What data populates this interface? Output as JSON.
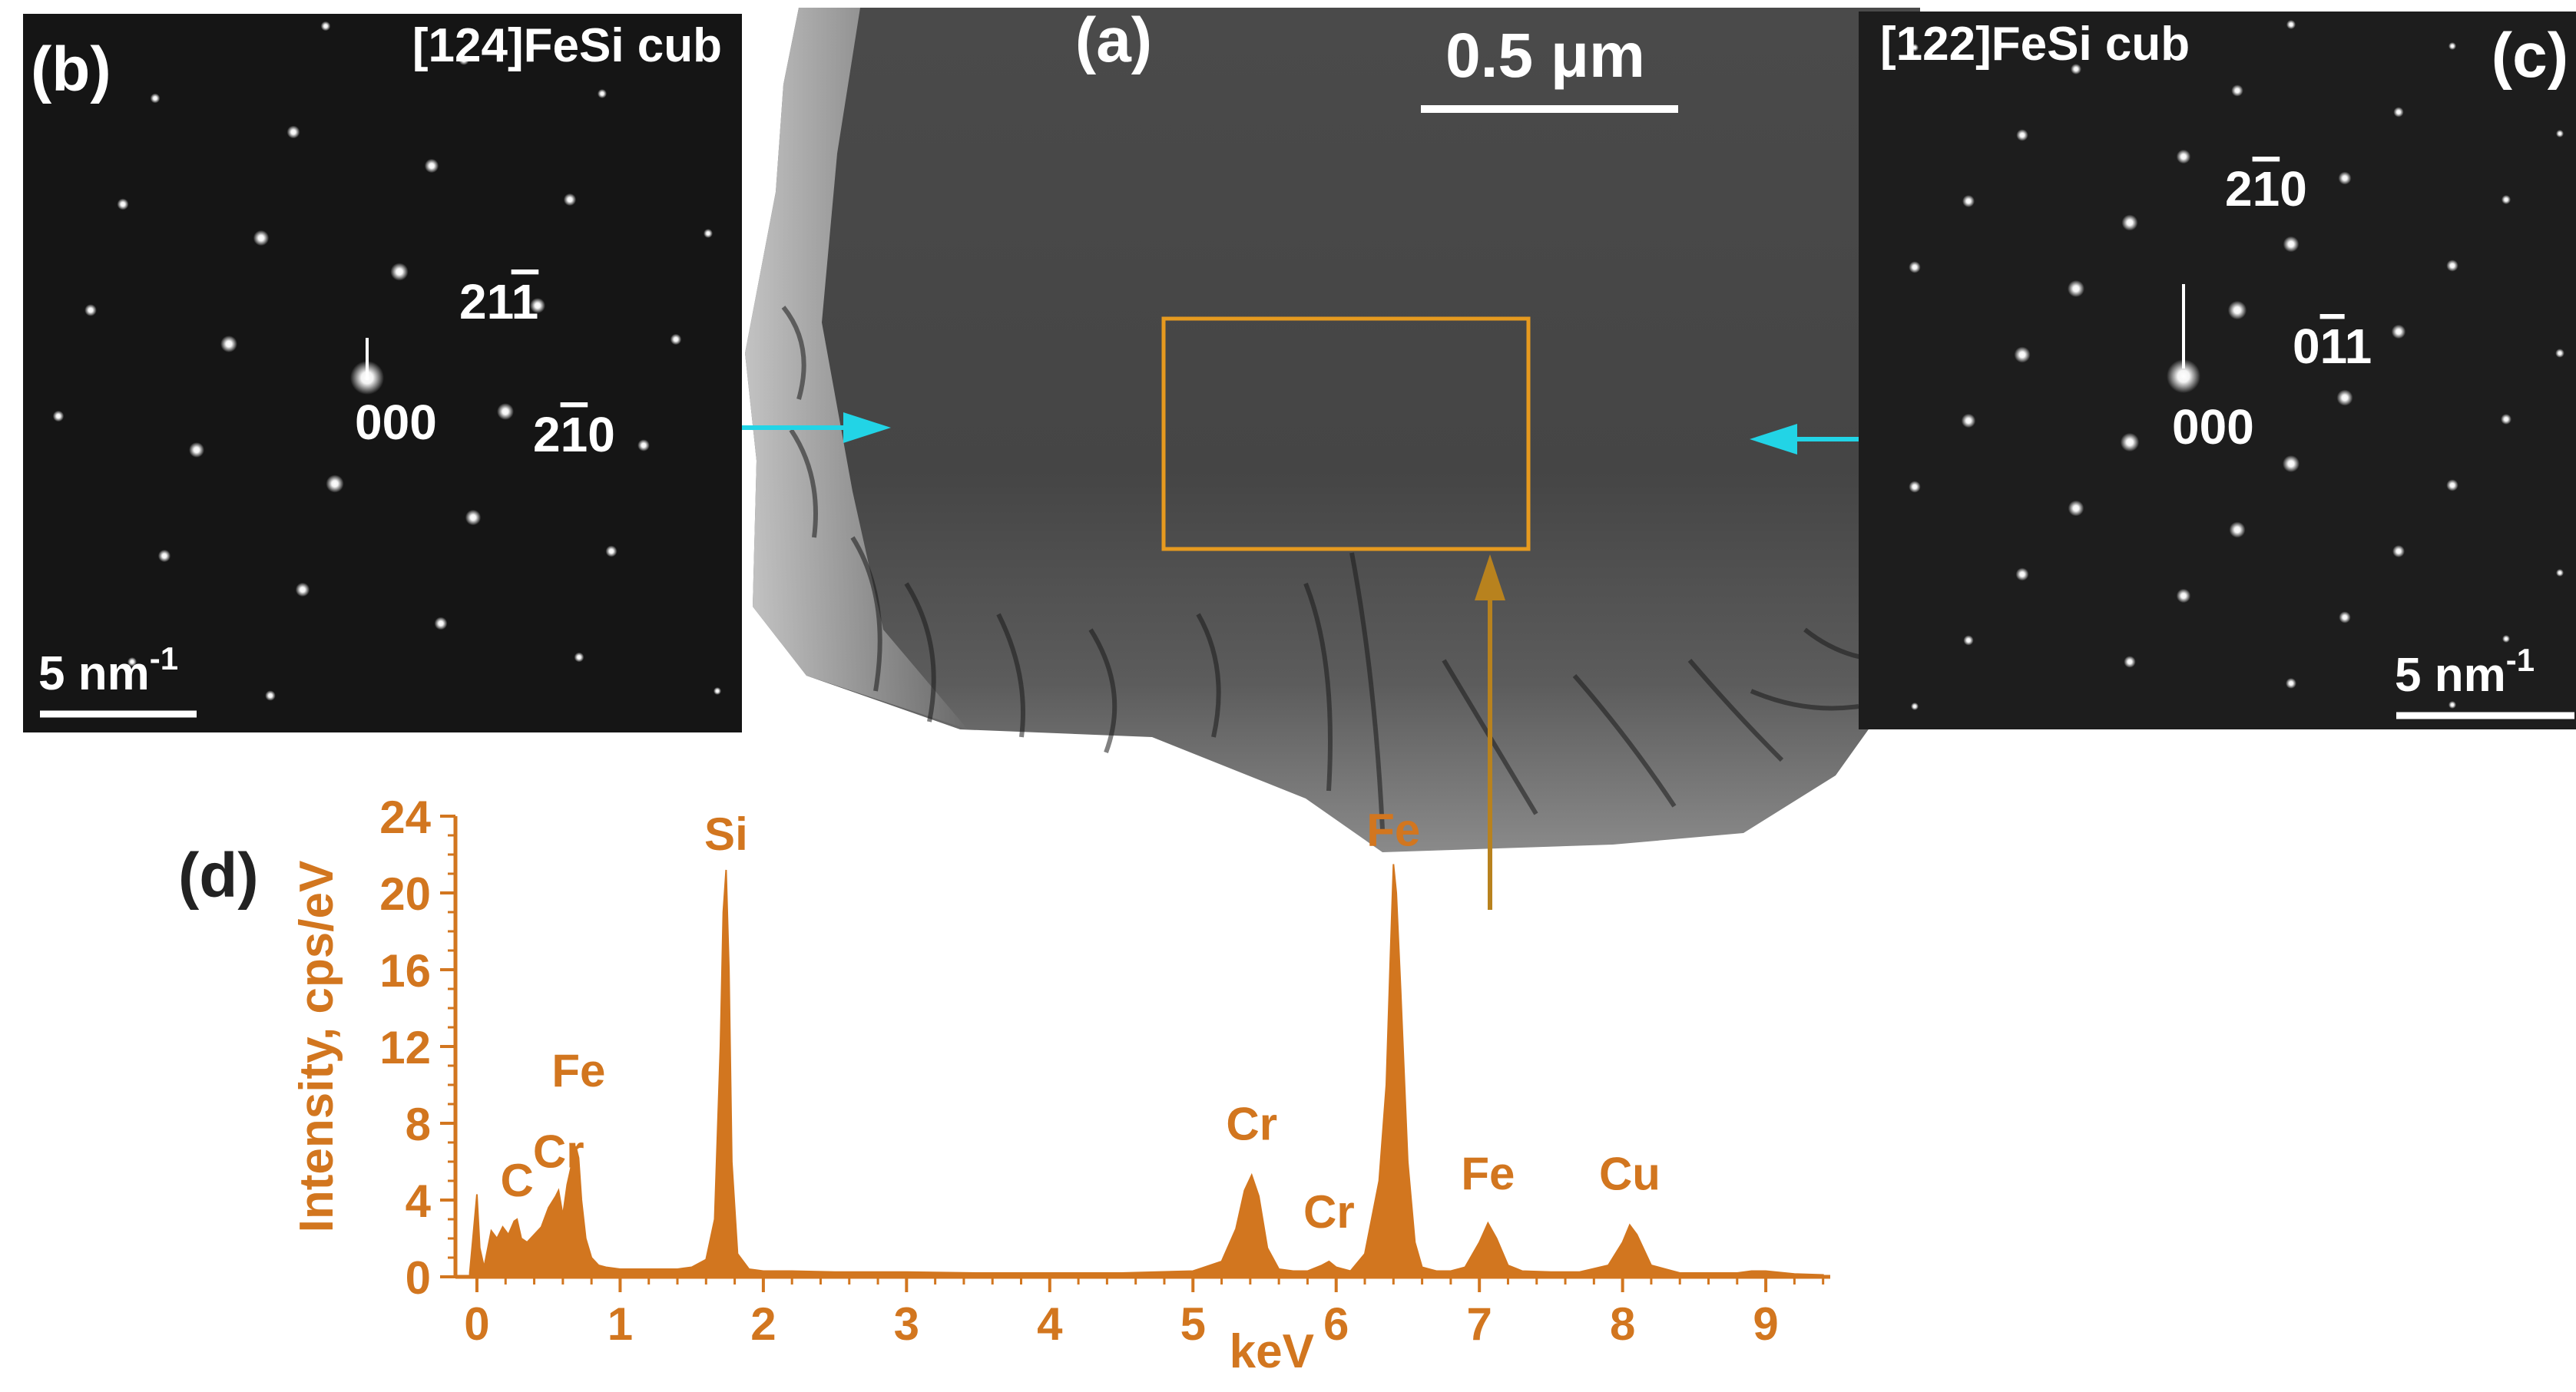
{
  "colors": {
    "accent_orange": "#d2761f",
    "arrow_cyan": "#22d4e6",
    "arrow_brown": "#b8821e",
    "box_orange": "#e69a1f",
    "panel_dark": "#151515"
  },
  "panel_a": {
    "label": "(a)",
    "scalebar": "0.5 μm"
  },
  "panel_b": {
    "label": "(b)",
    "zone_axis": "[124]FeSi cub",
    "scalebar_main": "5 nm",
    "scalebar_exp": "-1",
    "spots": [
      {
        "pre": "",
        "bar": "",
        "post": "000"
      },
      {
        "pre": "21",
        "bar": "1",
        "post": ""
      },
      {
        "pre": "2",
        "bar": "1",
        "post": "0"
      }
    ]
  },
  "panel_c": {
    "label": "(c)",
    "zone_axis": "[122]FeSi cub",
    "scalebar_main": "5 nm",
    "scalebar_exp": "-1",
    "spots": [
      {
        "pre": "2",
        "bar": "1",
        "post": "0"
      },
      {
        "pre": "0",
        "bar": "1",
        "post": "1"
      },
      {
        "pre": "",
        "bar": "",
        "post": "000"
      }
    ]
  },
  "panel_d": {
    "label": "(d)"
  },
  "chart_data": {
    "type": "area",
    "xlabel": "keV",
    "ylabel": "Intensity, cps/eV",
    "xlim": [
      -0.15,
      9.45
    ],
    "ylim": [
      0,
      24
    ],
    "x_ticks": [
      0,
      1,
      2,
      3,
      4,
      5,
      6,
      7,
      8,
      9
    ],
    "y_ticks": [
      0,
      4,
      8,
      12,
      16,
      20,
      24
    ],
    "grid": false,
    "peaks": [
      {
        "label": "C",
        "x": 0.28,
        "y": 3.0
      },
      {
        "label": "Cr",
        "x": 0.57,
        "y": 4.5
      },
      {
        "label": "Fe",
        "x": 0.71,
        "y": 6.8
      },
      {
        "label": "Si",
        "x": 1.74,
        "y": 21.2
      },
      {
        "label": "Cr",
        "x": 5.41,
        "y": 5.3
      },
      {
        "label": "Cr",
        "x": 5.95,
        "y": 0.8
      },
      {
        "label": "Fe",
        "x": 6.4,
        "y": 21.5
      },
      {
        "label": "Fe",
        "x": 7.06,
        "y": 2.8
      },
      {
        "label": "Cu",
        "x": 8.05,
        "y": 2.7
      }
    ],
    "series": [
      {
        "x": [
          -0.05,
          0.0,
          0.02,
          0.05,
          0.1,
          0.14,
          0.18,
          0.22,
          0.26,
          0.28,
          0.31,
          0.35,
          0.4,
          0.45,
          0.5,
          0.55,
          0.57,
          0.6,
          0.63,
          0.66,
          0.69,
          0.71,
          0.73,
          0.76,
          0.8,
          0.85,
          0.9,
          1.0,
          1.1,
          1.2,
          1.3,
          1.4,
          1.5,
          1.6,
          1.66,
          1.7,
          1.72,
          1.74,
          1.76,
          1.78,
          1.82,
          1.9,
          2.0,
          2.2,
          2.5,
          3.0,
          3.5,
          4.0,
          4.5,
          5.0,
          5.2,
          5.3,
          5.36,
          5.41,
          5.46,
          5.52,
          5.6,
          5.7,
          5.8,
          5.9,
          5.95,
          6.0,
          6.1,
          6.2,
          6.3,
          6.35,
          6.38,
          6.4,
          6.42,
          6.45,
          6.5,
          6.55,
          6.6,
          6.7,
          6.8,
          6.9,
          7.0,
          7.06,
          7.12,
          7.2,
          7.3,
          7.5,
          7.7,
          7.9,
          8.0,
          8.05,
          8.1,
          8.2,
          8.4,
          8.6,
          8.8,
          8.9,
          9.0,
          9.2,
          9.4
        ],
        "y": [
          0.2,
          4.3,
          1.5,
          0.5,
          2.4,
          2.0,
          2.6,
          2.2,
          2.9,
          3.0,
          2.0,
          1.8,
          2.2,
          2.6,
          3.6,
          4.2,
          4.5,
          3.2,
          4.8,
          5.8,
          6.8,
          6.2,
          4.0,
          2.0,
          1.0,
          0.6,
          0.5,
          0.4,
          0.4,
          0.4,
          0.4,
          0.4,
          0.5,
          0.9,
          3.0,
          12.0,
          19.0,
          21.2,
          16.0,
          6.0,
          1.2,
          0.4,
          0.3,
          0.3,
          0.25,
          0.25,
          0.2,
          0.2,
          0.2,
          0.3,
          0.8,
          2.5,
          4.5,
          5.3,
          4.2,
          1.5,
          0.4,
          0.3,
          0.3,
          0.6,
          0.8,
          0.5,
          0.3,
          1.2,
          5.0,
          10.0,
          17.0,
          21.5,
          20.0,
          15.0,
          6.0,
          1.8,
          0.5,
          0.3,
          0.3,
          0.5,
          1.8,
          2.8,
          2.0,
          0.6,
          0.3,
          0.25,
          0.25,
          0.6,
          1.8,
          2.7,
          2.2,
          0.6,
          0.2,
          0.2,
          0.2,
          0.3,
          0.3,
          0.15,
          0.1
        ]
      }
    ]
  }
}
